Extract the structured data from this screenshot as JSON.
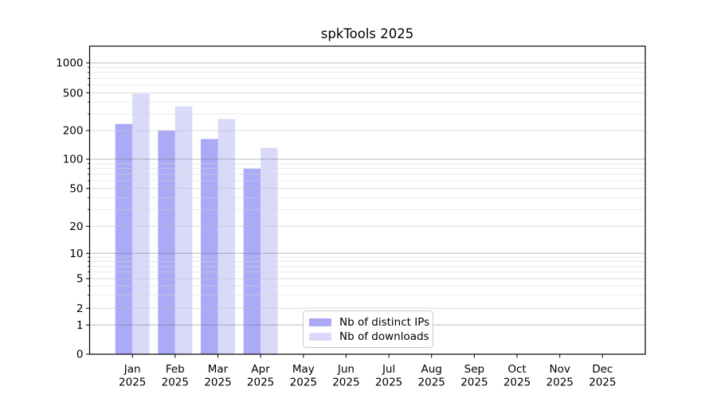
{
  "title": "spkTools 2025",
  "chart_data": {
    "type": "bar",
    "title": "spkTools 2025",
    "categories": [
      "Jan",
      "Feb",
      "Mar",
      "Apr",
      "May",
      "Jun",
      "Jul",
      "Aug",
      "Sep",
      "Oct",
      "Nov",
      "Dec"
    ],
    "year_label": "2025",
    "series": [
      {
        "name": "Nb of distinct IPs",
        "color": "#aaaaf7",
        "values": [
          235,
          200,
          163,
          80,
          0,
          0,
          0,
          0,
          0,
          0,
          0,
          0
        ]
      },
      {
        "name": "Nb of downloads",
        "color": "#d9d9fa",
        "values": [
          490,
          360,
          265,
          132,
          0,
          0,
          0,
          0,
          0,
          0,
          0,
          0
        ]
      }
    ],
    "yticks": [
      0,
      1,
      2,
      5,
      10,
      20,
      50,
      100,
      200,
      500,
      1000
    ],
    "yscale": "symlog",
    "ylim": [
      0,
      1450
    ],
    "xlabel": "",
    "ylabel": "",
    "grid": true,
    "legend_position": "lower center"
  }
}
